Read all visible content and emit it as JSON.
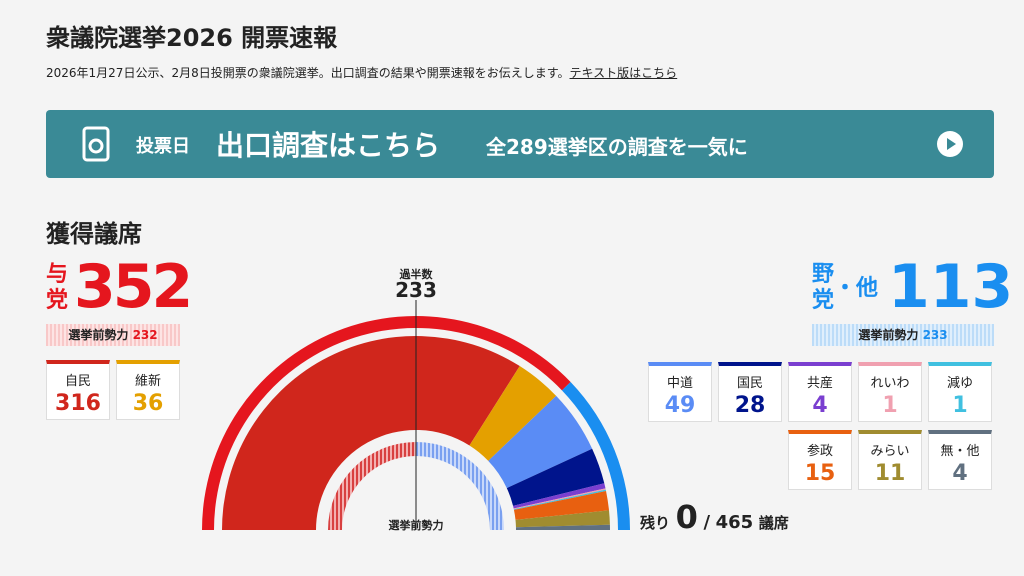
{
  "header": {
    "title": "衆議院選挙2026 開票速報",
    "subtitle": "2026年1月27日公示、2月8日投開票の衆議院選挙。出口調査の結果や開票速報をお伝えします。",
    "link": "テキスト版はこちら"
  },
  "banner": {
    "label": "投票日",
    "headline": "出口調査はこちら",
    "text": "全289選挙区の調査を一気に"
  },
  "section_title": "獲得議席",
  "ruling": {
    "label_1": "与",
    "label_2": "党",
    "seats": 352,
    "previous_label": "選挙前勢力",
    "previous": 232,
    "color": "#e5161e",
    "parties": [
      {
        "name": "自民",
        "seats": 316,
        "color": "#d0261c"
      },
      {
        "name": "維新",
        "seats": 36,
        "color": "#e4a000"
      }
    ]
  },
  "opposition": {
    "label_1": "野",
    "label_2": "党",
    "label_3": "・他",
    "seats": 113,
    "previous_label": "選挙前勢力",
    "previous": 233,
    "color": "#1a8ef0",
    "parties": [
      {
        "name": "中道",
        "seats": 49,
        "color": "#5a8cf5"
      },
      {
        "name": "国民",
        "seats": 28,
        "color": "#00148c"
      },
      {
        "name": "共産",
        "seats": 4,
        "color": "#7a3fd0"
      },
      {
        "name": "れいわ",
        "seats": 1,
        "color": "#f0a0b0"
      },
      {
        "name": "減ゆ",
        "seats": 1,
        "color": "#40c0e0"
      },
      {
        "name": "参政",
        "seats": 15,
        "color": "#e86010"
      },
      {
        "name": "みらい",
        "seats": 11,
        "color": "#a08c30"
      },
      {
        "name": "無・他",
        "seats": 4,
        "color": "#607080"
      }
    ]
  },
  "majority": {
    "label": "過半数",
    "value": 233
  },
  "inner_label": "選挙前勢力",
  "remaining": {
    "label": "残り",
    "value": 0,
    "separator": "/",
    "total": 465,
    "unit": "議席"
  }
}
